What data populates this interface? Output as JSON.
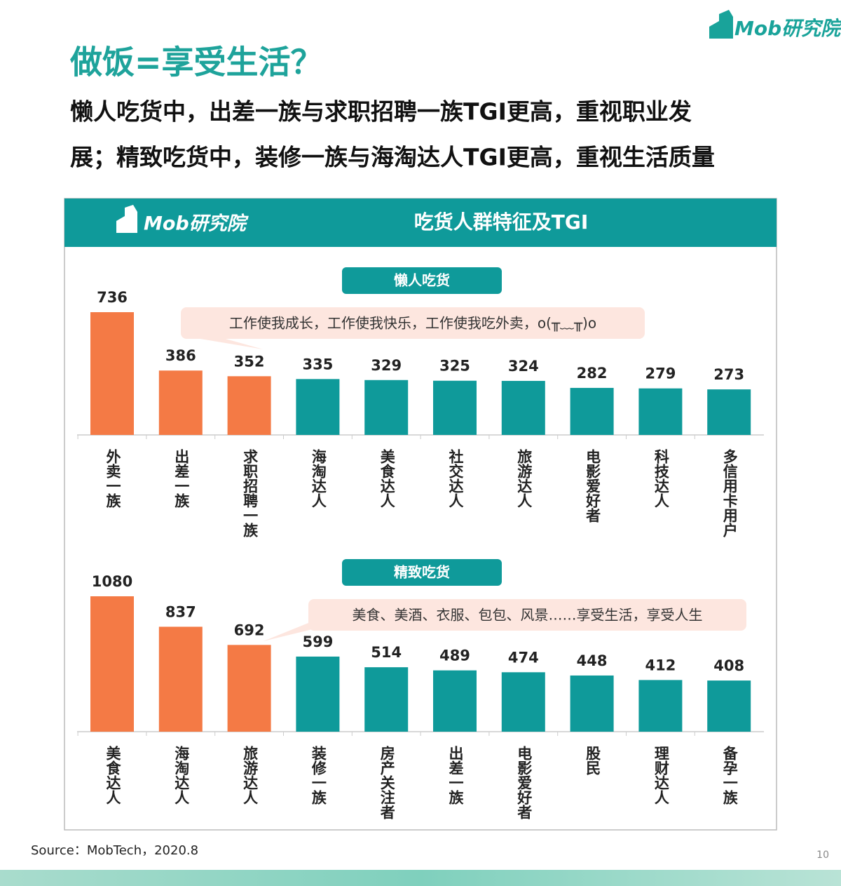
{
  "header": {
    "logo": "Mob研究院",
    "title": "做饭=享受生活？",
    "subtitle": [
      "懒人吃货中，出差一族与求职招聘一族TGI更高，重视职业发",
      "展；精致吃货中，装修一族与海淘达人TGI更高，重视生活质量"
    ]
  },
  "panel": {
    "logo": "Mob研究院",
    "title": "吃货人群特征及TGI"
  },
  "chart_data": [
    {
      "type": "bar",
      "title": "懒人吃货",
      "annotation": "工作使我成长，工作使我快乐，工作使我吃外卖，o(╥﹏╥)o",
      "categories": [
        "外卖一族",
        "出差一族",
        "求职招聘一族",
        "海淘达人",
        "美食达人",
        "社交达人",
        "旅游达人",
        "电影爱好者",
        "科技达人",
        "多信用卡用户"
      ],
      "values": [
        736,
        386,
        352,
        335,
        329,
        325,
        324,
        282,
        279,
        273
      ],
      "colors": [
        "#f47a45",
        "#f47a45",
        "#f47a45",
        "#0f9a9a",
        "#0f9a9a",
        "#0f9a9a",
        "#0f9a9a",
        "#0f9a9a",
        "#0f9a9a",
        "#0f9a9a"
      ]
    },
    {
      "type": "bar",
      "title": "精致吃货",
      "annotation": "美食、美酒、衣服、包包、风景……享受生活，享受人生",
      "categories": [
        "美食达人",
        "海淘达人",
        "旅游达人",
        "装修一族",
        "房产关注者",
        "出差一族",
        "电影爱好者",
        "股民",
        "理财达人",
        "备孕一族"
      ],
      "values": [
        1080,
        837,
        692,
        599,
        514,
        489,
        474,
        448,
        412,
        408
      ],
      "colors": [
        "#f47a45",
        "#f47a45",
        "#f47a45",
        "#0f9a9a",
        "#0f9a9a",
        "#0f9a9a",
        "#0f9a9a",
        "#0f9a9a",
        "#0f9a9a",
        "#0f9a9a"
      ]
    }
  ],
  "footer": {
    "source": "Source：MobTech，2020.8",
    "page": "10"
  }
}
